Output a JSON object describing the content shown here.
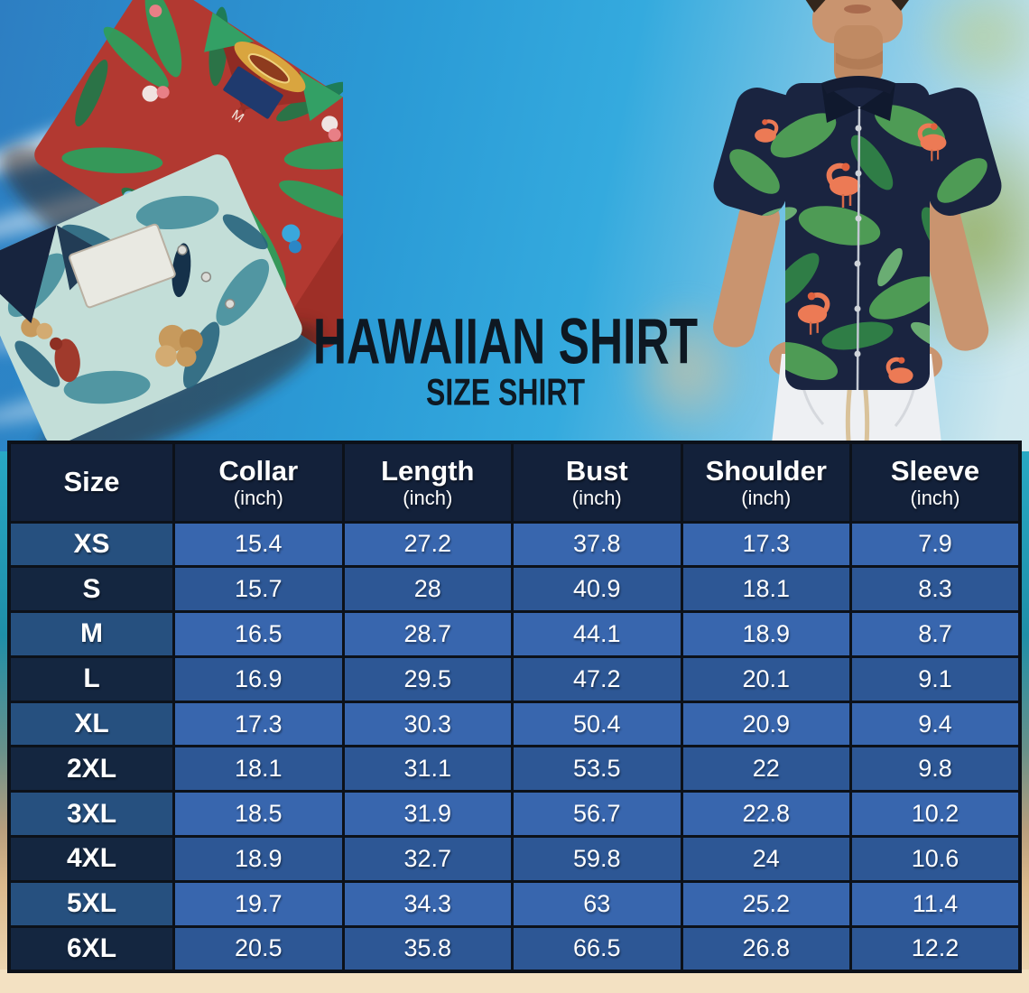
{
  "title": {
    "main": "HAWAIIAN SHIRT",
    "sub": "SIZE SHIRT"
  },
  "photos": {
    "left_shirt_tag_letter": "M",
    "red_shirt_color": "#b23931",
    "teal_shirt_color": "#c3ded8",
    "model_shirt_color": "#1a2440"
  },
  "chart_data": {
    "type": "table",
    "title": "HAWAIIAN SHIRT",
    "subtitle": "SIZE SHIRT",
    "columns": [
      {
        "label": "Size",
        "unit": ""
      },
      {
        "label": "Collar",
        "unit": "(inch)"
      },
      {
        "label": "Length",
        "unit": "(inch)"
      },
      {
        "label": "Bust",
        "unit": "(inch)"
      },
      {
        "label": "Shoulder",
        "unit": "(inch)"
      },
      {
        "label": "Sleeve",
        "unit": "(inch)"
      }
    ],
    "rows": [
      {
        "size": "XS",
        "values": [
          "15.4",
          "27.2",
          "37.8",
          "17.3",
          "7.9"
        ]
      },
      {
        "size": "S",
        "values": [
          "15.7",
          "28",
          "40.9",
          "18.1",
          "8.3"
        ]
      },
      {
        "size": "M",
        "values": [
          "16.5",
          "28.7",
          "44.1",
          "18.9",
          "8.7"
        ]
      },
      {
        "size": "L",
        "values": [
          "16.9",
          "29.5",
          "47.2",
          "20.1",
          "9.1"
        ]
      },
      {
        "size": "XL",
        "values": [
          "17.3",
          "30.3",
          "50.4",
          "20.9",
          "9.4"
        ]
      },
      {
        "size": "2XL",
        "values": [
          "18.1",
          "31.1",
          "53.5",
          "22",
          "9.8"
        ]
      },
      {
        "size": "3XL",
        "values": [
          "18.5",
          "31.9",
          "56.7",
          "22.8",
          "10.2"
        ]
      },
      {
        "size": "4XL",
        "values": [
          "18.9",
          "32.7",
          "59.8",
          "24",
          "10.6"
        ]
      },
      {
        "size": "5XL",
        "values": [
          "19.7",
          "34.3",
          "63",
          "25.2",
          "11.4"
        ]
      },
      {
        "size": "6XL",
        "values": [
          "20.5",
          "35.8",
          "66.5",
          "26.8",
          "12.2"
        ]
      }
    ]
  },
  "colors": {
    "header_bg": "#13213a",
    "row_light_label_bg": "#26507f",
    "row_light_value_bg": "#3866ae",
    "row_dark_label_bg": "#142640",
    "row_dark_value_bg": "#2d5795",
    "table_border": "#0c1119",
    "table_text": "#ffffff",
    "title_text": "#0e1822",
    "sky_blue": "#2b9bd6",
    "sea_teal": "#1f8fa8",
    "sand": "#f3e1c2"
  }
}
